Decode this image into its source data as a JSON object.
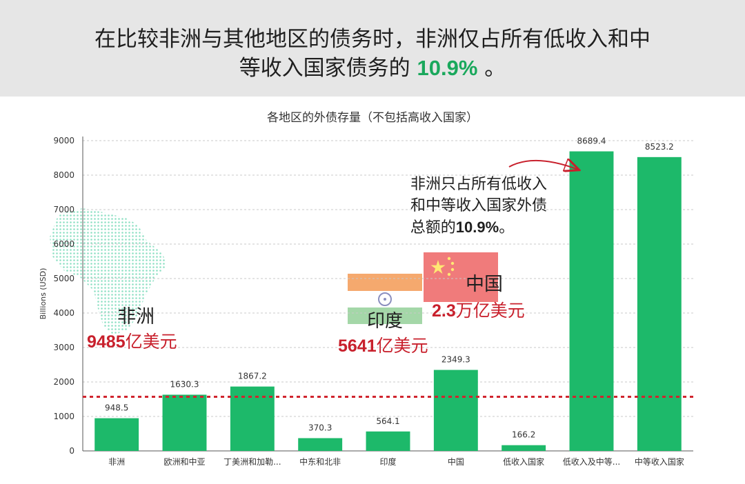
{
  "header": {
    "line1": "在比较非洲与其他地区的债务时，非洲仅占所有低收入和中",
    "line2_prefix": "等收入国家债务的 ",
    "line2_highlight": "10.9%",
    "line2_suffix": " 。"
  },
  "chart_data": {
    "type": "bar",
    "title": "各地区的外债存量（不包括高收入国家）",
    "ylabel": "Billions (USD)",
    "xlabel": "",
    "ylim": [
      0,
      9000
    ],
    "ytick_step": 1000,
    "grid": true,
    "categories": [
      "非洲",
      "欧洲和中亚",
      "丁美洲和加勒...",
      "中东和北非",
      "印度",
      "中国",
      "低收入国家",
      "低收入及中等...",
      "中等收入国家"
    ],
    "values": [
      948.5,
      1630.3,
      1867.2,
      370.3,
      564.1,
      2349.3,
      166.2,
      8689.4,
      8523.2
    ],
    "value_labels": [
      "948.5",
      "1630.3",
      "1867.2",
      "370.3",
      "564.1",
      "2349.3",
      "166.2",
      "8689.4",
      "8523.2"
    ],
    "reference_line": 1570,
    "colors": {
      "bar": "#1db96a",
      "reference": "#d0242e",
      "highlight_green": "#1aa85c",
      "annotation_red": "#c8202c"
    },
    "annotations": {
      "africa": {
        "name": "非洲",
        "amount_num": "9485",
        "amount_unit": "亿美元"
      },
      "india": {
        "name": "印度",
        "amount_num": "5641",
        "amount_unit": "亿美元"
      },
      "china": {
        "name": "中国",
        "amount_num": "2.3",
        "amount_unit": "万亿美元"
      },
      "note": {
        "line1": "非洲只占所有低收入",
        "line2": "和中等收入国家外债",
        "line3_prefix": "总额的",
        "line3_pct": "10.9%",
        "line3_suffix": "。"
      }
    }
  }
}
